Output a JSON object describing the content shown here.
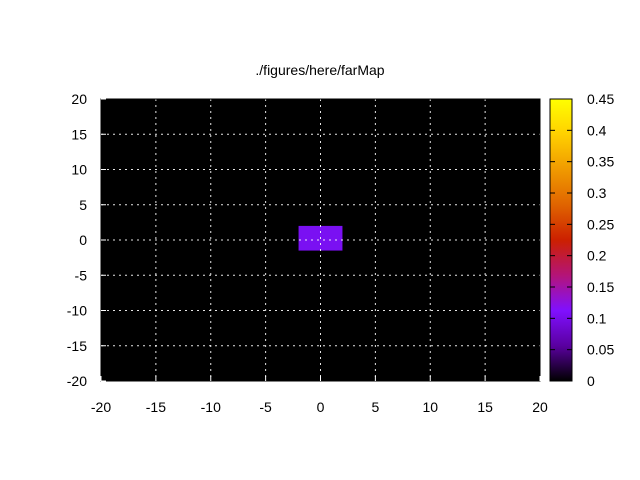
{
  "chart_data": {
    "type": "heatmap",
    "title": "./figures/here/farMap",
    "xlabel": "",
    "ylabel": "",
    "xlim": [
      -20,
      20
    ],
    "ylim": [
      -20,
      20
    ],
    "x_ticks": [
      "-20",
      "-15",
      "-10",
      "-5",
      "0",
      "5",
      "10",
      "15",
      "20"
    ],
    "y_ticks": [
      "20",
      "15",
      "10",
      "5",
      "0",
      "-5",
      "-10",
      "-15",
      "-20"
    ],
    "grid": true,
    "background_color": "#000000",
    "cells": [
      {
        "x0": -2,
        "x1": 2,
        "y0": -1.5,
        "y1": 2,
        "value": 0.15,
        "color": "#7a10f2"
      }
    ],
    "colorbar": {
      "range": [
        0,
        0.45
      ],
      "ticks": [
        "0.45",
        "0.4",
        "0.35",
        "0.3",
        "0.25",
        "0.2",
        "0.15",
        "0.1",
        "0.05",
        "0"
      ],
      "palette": [
        "#000000",
        "#5a00a0",
        "#8010ff",
        "#b41478",
        "#cc2000",
        "#e06400",
        "#f09a00",
        "#ffd000",
        "#ffff00"
      ]
    }
  }
}
